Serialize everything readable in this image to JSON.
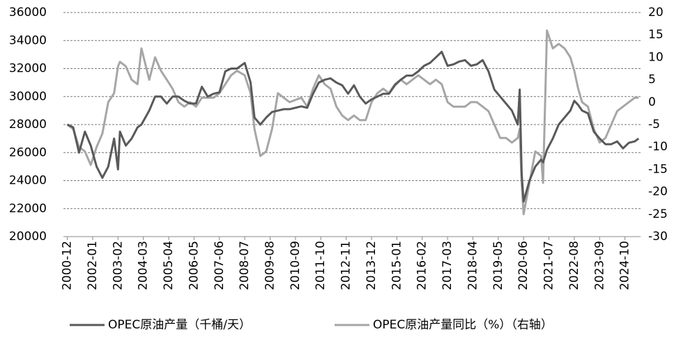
{
  "chart_data": {
    "type": "line",
    "x": [
      "2000-12",
      "2001-03",
      "2001-06",
      "2001-09",
      "2001-12",
      "2002-03",
      "2002-06",
      "2002-09",
      "2002-12",
      "2003-02",
      "2003-03",
      "2003-06",
      "2003-09",
      "2003-12",
      "2004-02",
      "2004-06",
      "2004-09",
      "2004-12",
      "2005-03",
      "2005-06",
      "2005-09",
      "2005-12",
      "2006-03",
      "2006-06",
      "2006-09",
      "2006-12",
      "2007-03",
      "2007-06",
      "2007-09",
      "2007-12",
      "2008-03",
      "2008-07",
      "2008-10",
      "2008-12",
      "2009-03",
      "2009-06",
      "2009-09",
      "2009-12",
      "2010-03",
      "2010-06",
      "2010-12",
      "2011-03",
      "2011-06",
      "2011-09",
      "2011-12",
      "2012-03",
      "2012-06",
      "2012-09",
      "2012-12",
      "2013-03",
      "2013-06",
      "2013-09",
      "2013-12",
      "2014-03",
      "2014-06",
      "2014-09",
      "2014-12",
      "2015-03",
      "2015-06",
      "2015-09",
      "2015-12",
      "2016-03",
      "2016-06",
      "2016-09",
      "2016-12",
      "2017-03",
      "2017-06",
      "2017-09",
      "2017-12",
      "2018-03",
      "2018-06",
      "2018-09",
      "2018-12",
      "2019-03",
      "2019-06",
      "2019-09",
      "2019-12",
      "2020-03",
      "2020-04",
      "2020-05",
      "2020-06",
      "2020-09",
      "2020-12",
      "2021-03",
      "2021-04",
      "2021-06",
      "2021-09",
      "2021-12",
      "2022-03",
      "2022-06",
      "2022-08",
      "2022-10",
      "2022-12",
      "2023-03",
      "2023-06",
      "2023-09",
      "2023-12",
      "2024-03",
      "2024-06",
      "2024-09",
      "2024-12",
      "2025-03",
      "2025-05"
    ],
    "series": [
      {
        "name": "OPEC原油产量（千桶/天）",
        "color": "#595959",
        "values": [
          28000,
          27800,
          26000,
          27500,
          26500,
          25000,
          24200,
          25000,
          27000,
          24800,
          27500,
          26500,
          27000,
          27800,
          28000,
          29000,
          30000,
          30000,
          29500,
          30000,
          30000,
          29700,
          29500,
          29500,
          30700,
          30000,
          30200,
          30300,
          31800,
          32000,
          32000,
          32400,
          31000,
          28500,
          28000,
          28500,
          28900,
          29000,
          29100,
          29100,
          29300,
          29200,
          30200,
          31000,
          31200,
          31300,
          31000,
          30800,
          30200,
          30800,
          30000,
          29500,
          29800,
          30000,
          30200,
          30200,
          30800,
          31200,
          31500,
          31500,
          31800,
          32200,
          32400,
          32800,
          33200,
          32200,
          32300,
          32500,
          32600,
          32200,
          32300,
          32600,
          31800,
          30500,
          30000,
          29500,
          29000,
          28000,
          30500,
          24500,
          22500,
          24000,
          25000,
          25500,
          25300,
          26200,
          27000,
          28000,
          28500,
          29000,
          29700,
          29400,
          29000,
          28800,
          27500,
          27000,
          26600,
          26600,
          26800,
          26300,
          26700,
          26800,
          27000
        ]
      },
      {
        "name": "OPEC原油产量同比（%）（右轴）",
        "color": "#a6a6a6",
        "axis": "y2",
        "values": [
          -5,
          -6,
          -10,
          -11,
          -14,
          -10,
          -7,
          0,
          2,
          8,
          9,
          8,
          5,
          4,
          12,
          5,
          10,
          7,
          5,
          3,
          0,
          -1,
          0,
          -1,
          1,
          1,
          1,
          2,
          4,
          6,
          7,
          6,
          2,
          -6,
          -12,
          -11,
          -6,
          2,
          1,
          0,
          1,
          -1,
          3,
          6,
          4,
          3,
          -1,
          -3,
          -4,
          -3,
          -4,
          -4,
          0,
          2,
          3,
          2,
          4,
          5,
          4,
          5,
          6,
          5,
          4,
          5,
          4,
          0,
          -1,
          -1,
          -1,
          0,
          0,
          -1,
          -2,
          -5,
          -8,
          -8,
          -9,
          -8,
          -6,
          -18,
          -25,
          -18,
          -11,
          -12,
          -18,
          16,
          12,
          13,
          12,
          10,
          7,
          3,
          0,
          -1,
          -6,
          -9,
          -8,
          -5,
          -2,
          -1,
          0,
          1,
          1
        ]
      }
    ],
    "xlim": [
      "2000-10",
      "2025-06"
    ],
    "xticks": [
      "2000-12",
      "2002-01",
      "2003-02",
      "2004-03",
      "2005-04",
      "2006-05",
      "2007-06",
      "2008-07",
      "2009-08",
      "2010-09",
      "2011-10",
      "2012-11",
      "2013-12",
      "2015-01",
      "2016-02",
      "2017-03",
      "2018-04",
      "2019-05",
      "2020-06",
      "2021-07",
      "2022-08",
      "2023-09",
      "2024-10"
    ],
    "ylim": [
      20000,
      36000
    ],
    "yticks": [
      20000,
      22000,
      24000,
      26000,
      28000,
      30000,
      32000,
      34000,
      36000
    ],
    "y2lim": [
      -30,
      20
    ],
    "y2ticks": [
      -30,
      -25,
      -20,
      -15,
      -10,
      -5,
      0,
      5,
      10,
      15,
      20
    ],
    "grid": true,
    "legend": "bottom"
  }
}
